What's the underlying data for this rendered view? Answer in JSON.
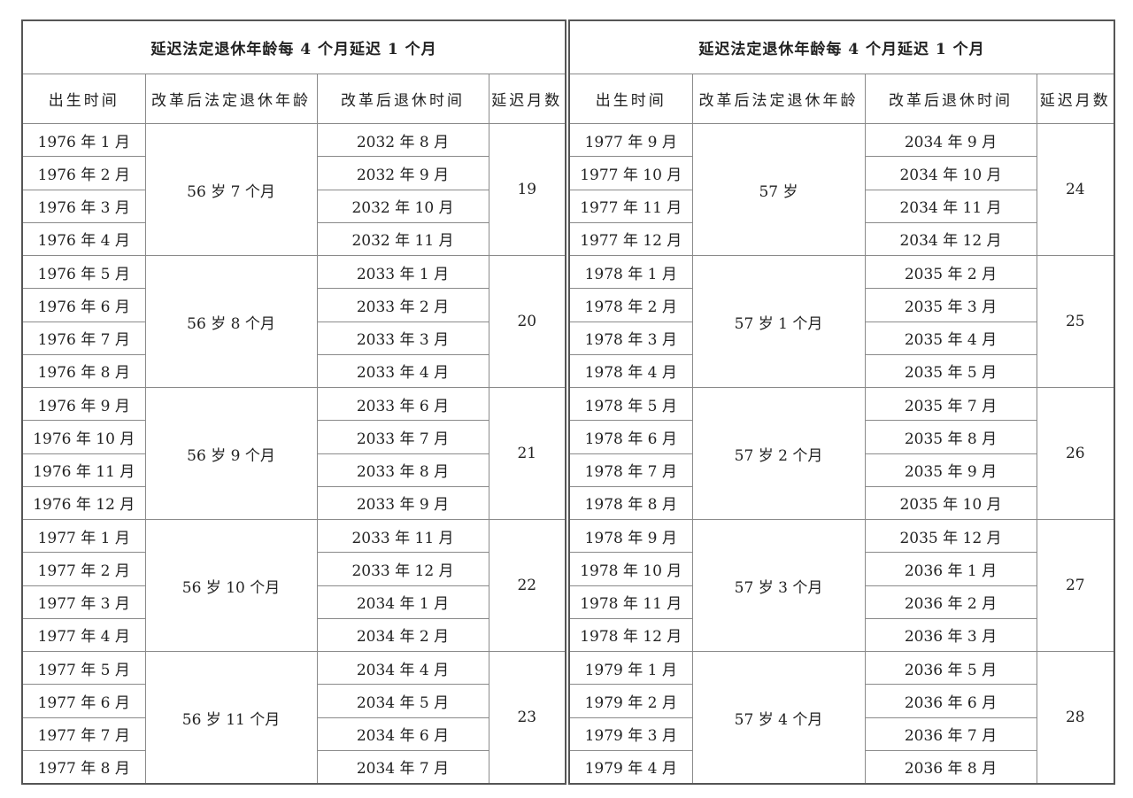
{
  "tables": [
    {
      "title": "延迟法定退休年龄每 4 个月延迟 1 个月",
      "headers": [
        "出生时间",
        "改革后法定退休年龄",
        "改革后退休时间",
        "延迟月数"
      ],
      "groups": [
        {
          "age": "56 岁 7 个月",
          "delay": "19",
          "rows": [
            [
              "1976 年 1 月",
              "2032 年 8 月"
            ],
            [
              "1976 年 2 月",
              "2032 年 9 月"
            ],
            [
              "1976 年 3 月",
              "2032 年 10 月"
            ],
            [
              "1976 年 4 月",
              "2032 年 11 月"
            ]
          ]
        },
        {
          "age": "56 岁 8 个月",
          "delay": "20",
          "rows": [
            [
              "1976 年 5 月",
              "2033 年 1 月"
            ],
            [
              "1976 年 6 月",
              "2033 年 2 月"
            ],
            [
              "1976 年 7 月",
              "2033 年 3 月"
            ],
            [
              "1976 年 8 月",
              "2033 年 4 月"
            ]
          ]
        },
        {
          "age": "56 岁 9 个月",
          "delay": "21",
          "rows": [
            [
              "1976 年 9 月",
              "2033 年 6 月"
            ],
            [
              "1976 年 10 月",
              "2033 年 7 月"
            ],
            [
              "1976 年 11 月",
              "2033 年 8 月"
            ],
            [
              "1976 年 12 月",
              "2033 年 9 月"
            ]
          ]
        },
        {
          "age": "56 岁 10 个月",
          "delay": "22",
          "rows": [
            [
              "1977 年 1 月",
              "2033 年 11 月"
            ],
            [
              "1977 年 2 月",
              "2033 年 12 月"
            ],
            [
              "1977 年 3 月",
              "2034 年 1 月"
            ],
            [
              "1977 年 4 月",
              "2034 年 2 月"
            ]
          ]
        },
        {
          "age": "56 岁 11 个月",
          "delay": "23",
          "rows": [
            [
              "1977 年 5 月",
              "2034 年 4 月"
            ],
            [
              "1977 年 6 月",
              "2034 年 5 月"
            ],
            [
              "1977 年 7 月",
              "2034 年 6 月"
            ],
            [
              "1977 年 8 月",
              "2034 年 7 月"
            ]
          ]
        }
      ]
    },
    {
      "title": "延迟法定退休年龄每 4 个月延迟 1 个月",
      "headers": [
        "出生时间",
        "改革后法定退休年龄",
        "改革后退休时间",
        "延迟月数"
      ],
      "groups": [
        {
          "age": "57 岁",
          "delay": "24",
          "rows": [
            [
              "1977 年 9 月",
              "2034 年 9 月"
            ],
            [
              "1977 年 10 月",
              "2034 年 10 月"
            ],
            [
              "1977 年 11 月",
              "2034 年 11 月"
            ],
            [
              "1977 年 12 月",
              "2034 年 12 月"
            ]
          ]
        },
        {
          "age": "57 岁 1 个月",
          "delay": "25",
          "rows": [
            [
              "1978 年 1 月",
              "2035 年 2 月"
            ],
            [
              "1978 年 2 月",
              "2035 年 3 月"
            ],
            [
              "1978 年 3 月",
              "2035 年 4 月"
            ],
            [
              "1978 年 4 月",
              "2035 年 5 月"
            ]
          ]
        },
        {
          "age": "57 岁 2 个月",
          "delay": "26",
          "rows": [
            [
              "1978 年 5 月",
              "2035 年 7 月"
            ],
            [
              "1978 年 6 月",
              "2035 年 8 月"
            ],
            [
              "1978 年 7 月",
              "2035 年 9 月"
            ],
            [
              "1978 年 8 月",
              "2035 年 10 月"
            ]
          ]
        },
        {
          "age": "57 岁 3 个月",
          "delay": "27",
          "rows": [
            [
              "1978 年 9 月",
              "2035 年 12 月"
            ],
            [
              "1978 年 10 月",
              "2036 年 1 月"
            ],
            [
              "1978 年 11 月",
              "2036 年 2 月"
            ],
            [
              "1978 年 12 月",
              "2036 年 3 月"
            ]
          ]
        },
        {
          "age": "57 岁 4 个月",
          "delay": "28",
          "rows": [
            [
              "1979 年 1 月",
              "2036 年 5 月"
            ],
            [
              "1979 年 2 月",
              "2036 年 6 月"
            ],
            [
              "1979 年 3 月",
              "2036 年 7 月"
            ],
            [
              "1979 年 4 月",
              "2036 年 8 月"
            ]
          ]
        }
      ]
    }
  ]
}
